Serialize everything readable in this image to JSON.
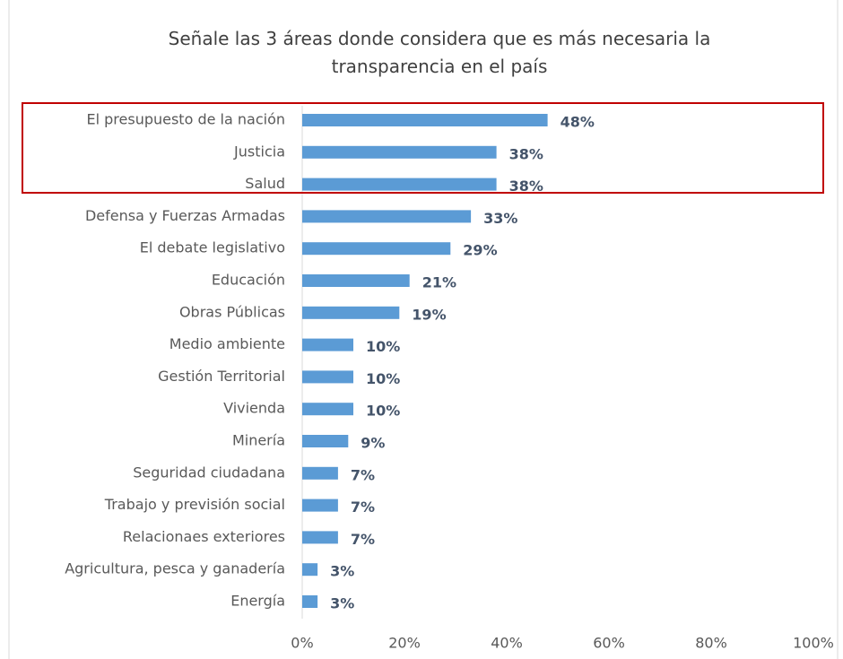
{
  "chart_data": {
    "type": "barh",
    "title": "Señale las 3 áreas donde considera que es más necesaria la transparencia en el país",
    "categories": [
      "El presupuesto de la nación",
      "Justicia",
      "Salud",
      "Defensa y Fuerzas Armadas",
      "El debate legislativo",
      "Educación",
      "Obras Públicas",
      "Medio ambiente",
      "Gestión Territorial",
      "Vivienda",
      "Minería",
      "Seguridad ciudadana",
      "Trabajo y previsión social",
      "Relacionaes exteriores",
      "Agricultura, pesca y ganadería",
      "Energía"
    ],
    "values": [
      48,
      38,
      38,
      33,
      29,
      21,
      19,
      10,
      10,
      10,
      9,
      7,
      7,
      7,
      3,
      3
    ],
    "value_labels": [
      "48%",
      "38%",
      "38%",
      "33%",
      "29%",
      "21%",
      "19%",
      "10%",
      "10%",
      "10%",
      "9%",
      "7%",
      "7%",
      "7%",
      "3%",
      "3%"
    ],
    "color": "#5b9bd5",
    "xlim": [
      0,
      100
    ],
    "xticks": [
      {
        "value": 0,
        "label": "0%"
      },
      {
        "value": 20,
        "label": "20%"
      },
      {
        "value": 40,
        "label": "40%"
      },
      {
        "value": 60,
        "label": "60%"
      },
      {
        "value": 80,
        "label": "80%"
      },
      {
        "value": 100,
        "label": "100%"
      }
    ],
    "grid": false
  }
}
